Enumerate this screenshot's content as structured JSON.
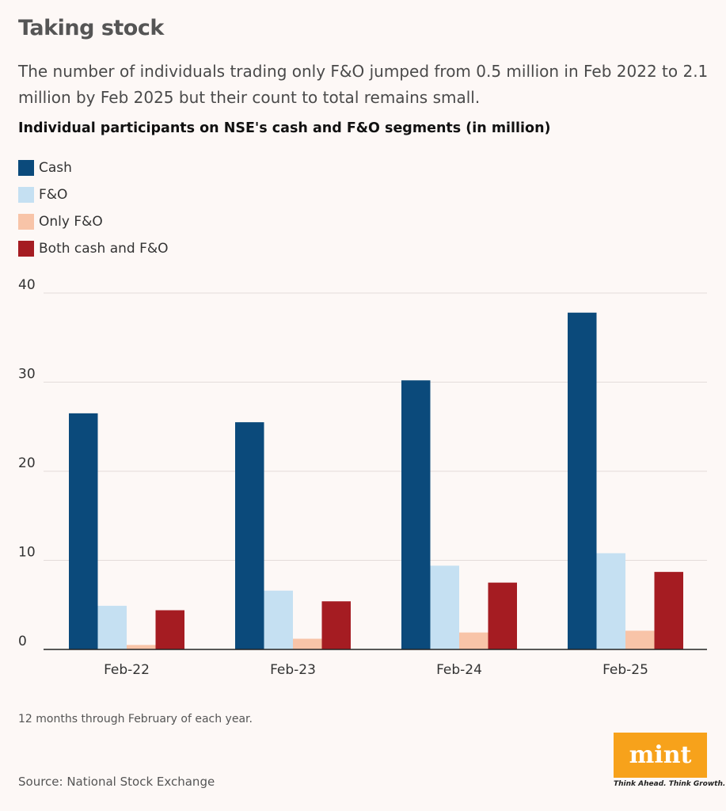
{
  "header": {
    "title": "Taking stock",
    "subtitle": "The number of individuals trading only F&O jumped from 0.5 million in Feb 2022 to 2.1 million by Feb 2025 but their count to total remains small."
  },
  "chart_heading": "Individual participants on NSE's cash and F&O segments (in million)",
  "chart_data": {
    "type": "bar",
    "categories": [
      "Feb-22",
      "Feb-23",
      "Feb-24",
      "Feb-25"
    ],
    "series": [
      {
        "name": "Cash",
        "color": "#0b4a7b",
        "values": [
          26.5,
          25.5,
          30.2,
          37.8
        ]
      },
      {
        "name": "F&O",
        "color": "#c5e0f2",
        "values": [
          4.9,
          6.6,
          9.4,
          10.8
        ]
      },
      {
        "name": "Only F&O",
        "color": "#f8c4a8",
        "values": [
          0.5,
          1.2,
          1.9,
          2.1
        ]
      },
      {
        "name": "Both cash and F&O",
        "color": "#a51c22",
        "values": [
          4.4,
          5.4,
          7.5,
          8.7
        ]
      }
    ],
    "yticks": [
      0,
      10,
      20,
      30,
      40
    ],
    "ylim": [
      0,
      40
    ],
    "grid": true,
    "legend_position": "top-left"
  },
  "footnote": "12 months through February of each year.",
  "source": "Source: National Stock Exchange",
  "logo": {
    "word": "mint",
    "tagline": "Think Ahead. Think Growth.",
    "color": "#f7a21b"
  }
}
